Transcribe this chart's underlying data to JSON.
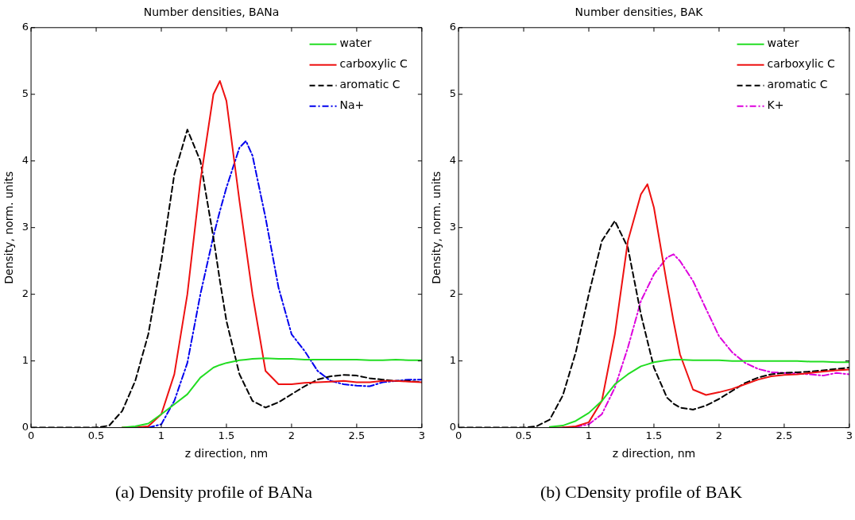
{
  "chart_data": [
    {
      "type": "line",
      "title": "Number densities, BANa",
      "xlabel": "z direction, nm",
      "ylabel": "Density, norm. units",
      "annotations": [
        "(a) Density profile of BANa"
      ],
      "x": [
        0,
        0.5,
        0.6,
        0.7,
        0.8,
        0.9,
        1.0,
        1.1,
        1.2,
        1.3,
        1.4,
        1.45,
        1.5,
        1.6,
        1.65,
        1.7,
        1.8,
        1.9,
        2.0,
        2.1,
        2.2,
        2.3,
        2.4,
        2.5,
        2.6,
        2.7,
        2.8,
        2.9,
        3.0
      ],
      "xlim": [
        0,
        3
      ],
      "xticks": [
        0,
        0.5,
        1,
        1.5,
        2,
        2.5,
        3
      ],
      "ylim": [
        0,
        6
      ],
      "yticks": [
        0,
        1,
        2,
        3,
        4,
        5,
        6
      ],
      "grid": false,
      "legend": "top right",
      "marker": "none",
      "series": [
        {
          "name": "water",
          "color": "#22dd22",
          "line_style": "solid",
          "values": [
            null,
            null,
            null,
            0,
            0.02,
            0.06,
            0.2,
            0.35,
            0.5,
            0.75,
            0.9,
            0.94,
            0.97,
            1.01,
            1.02,
            1.03,
            1.04,
            1.03,
            1.03,
            1.02,
            1.02,
            1.02,
            1.02,
            1.02,
            1.01,
            1.01,
            1.02,
            1.01,
            1.01
          ]
        },
        {
          "name": "carboxylic C",
          "color": "#ee1111",
          "line_style": "solid",
          "values": [
            null,
            null,
            null,
            0,
            0,
            0.02,
            0.2,
            0.8,
            2.0,
            3.7,
            5.0,
            5.2,
            4.9,
            3.4,
            2.7,
            2.0,
            0.85,
            0.65,
            0.65,
            0.67,
            0.68,
            0.69,
            0.7,
            0.68,
            0.68,
            0.7,
            0.7,
            0.69,
            0.68
          ]
        },
        {
          "name": "aromatic C",
          "color": "#000000",
          "line_style": "dashed",
          "values": [
            0,
            0,
            0.03,
            0.25,
            0.7,
            1.4,
            2.5,
            3.8,
            4.47,
            4.0,
            2.85,
            2.2,
            1.6,
            0.8,
            0.6,
            0.4,
            0.3,
            0.38,
            0.5,
            0.62,
            0.72,
            0.77,
            0.79,
            0.78,
            0.74,
            0.72,
            0.7,
            0.7,
            0.68
          ]
        },
        {
          "name": "Na+",
          "color": "#0000ee",
          "line_style": "dashdot",
          "values": [
            null,
            null,
            null,
            null,
            0,
            0,
            0.05,
            0.4,
            0.97,
            2.0,
            2.87,
            3.25,
            3.6,
            4.2,
            4.3,
            4.08,
            3.15,
            2.1,
            1.4,
            1.15,
            0.85,
            0.7,
            0.65,
            0.63,
            0.62,
            0.68,
            0.7,
            0.72,
            0.72
          ]
        }
      ]
    },
    {
      "type": "line",
      "title": "Number densities, BAK",
      "xlabel": "z direction, nm",
      "ylabel": "Density, norm. units",
      "annotations": [
        "(b) CDensity profile of BAK"
      ],
      "x": [
        0,
        0.5,
        0.6,
        0.7,
        0.8,
        0.9,
        1.0,
        1.1,
        1.2,
        1.3,
        1.4,
        1.45,
        1.5,
        1.6,
        1.65,
        1.7,
        1.8,
        1.9,
        2.0,
        2.1,
        2.2,
        2.3,
        2.4,
        2.5,
        2.6,
        2.7,
        2.8,
        2.9,
        3.0
      ],
      "xlim": [
        0,
        3
      ],
      "xticks": [
        0,
        0.5,
        1,
        1.5,
        2,
        2.5,
        3
      ],
      "ylim": [
        0,
        6
      ],
      "yticks": [
        0,
        1,
        2,
        3,
        4,
        5,
        6
      ],
      "grid": false,
      "legend": "top right",
      "marker": "none",
      "series": [
        {
          "name": "water",
          "color": "#22dd22",
          "line_style": "solid",
          "values": [
            null,
            null,
            null,
            0.01,
            0.03,
            0.1,
            0.22,
            0.4,
            0.65,
            0.8,
            0.92,
            0.95,
            0.98,
            1.01,
            1.02,
            1.02,
            1.01,
            1.01,
            1.01,
            1.0,
            1.0,
            1.0,
            1.0,
            1.0,
            1.0,
            0.99,
            0.99,
            0.98,
            0.98
          ]
        },
        {
          "name": "carboxylic C",
          "color": "#ee1111",
          "line_style": "solid",
          "values": [
            null,
            null,
            null,
            0,
            0,
            0.02,
            0.08,
            0.4,
            1.4,
            2.8,
            3.5,
            3.65,
            3.3,
            2.15,
            1.6,
            1.1,
            0.57,
            0.49,
            0.53,
            0.58,
            0.65,
            0.72,
            0.77,
            0.79,
            0.8,
            0.82,
            0.84,
            0.86,
            0.87
          ]
        },
        {
          "name": "aromatic C",
          "color": "#000000",
          "line_style": "dashed",
          "values": [
            0,
            0,
            0.02,
            0.12,
            0.48,
            1.13,
            2.0,
            2.8,
            3.1,
            2.7,
            1.7,
            1.3,
            0.9,
            0.45,
            0.36,
            0.3,
            0.27,
            0.33,
            0.43,
            0.55,
            0.67,
            0.75,
            0.8,
            0.82,
            0.83,
            0.84,
            0.86,
            0.88,
            0.9
          ]
        },
        {
          "name": "K+",
          "color": "#dd00dd",
          "line_style": "dashdot",
          "values": [
            null,
            null,
            null,
            null,
            0,
            0.01,
            0.05,
            0.2,
            0.6,
            1.2,
            1.9,
            2.1,
            2.3,
            2.55,
            2.6,
            2.5,
            2.2,
            1.78,
            1.37,
            1.13,
            0.97,
            0.88,
            0.83,
            0.82,
            0.81,
            0.8,
            0.78,
            0.82,
            0.8
          ]
        }
      ]
    }
  ]
}
